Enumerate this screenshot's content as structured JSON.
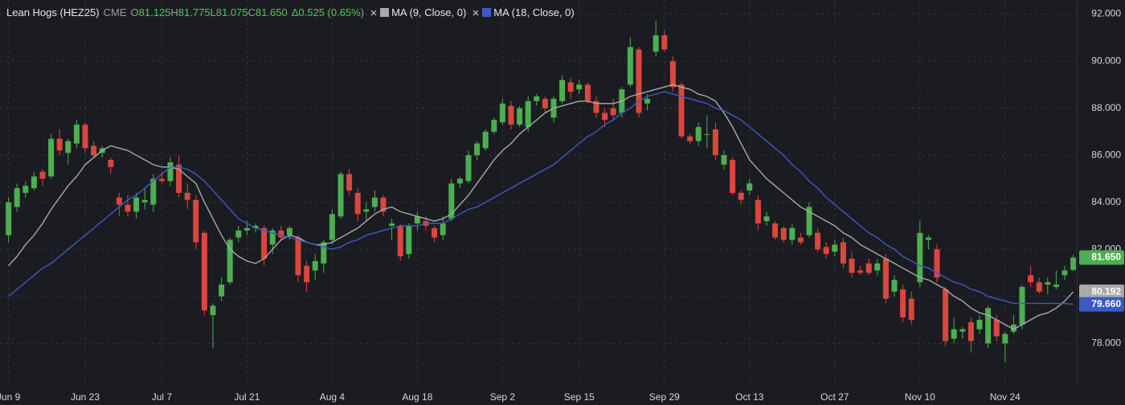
{
  "chart_data": {
    "type": "candlestick",
    "title": "Lean Hogs (HEZ25)",
    "exchange": "CME",
    "quote": [
      {
        "key": "O",
        "text": "81.125"
      },
      {
        "key": "H",
        "text": "81.775"
      },
      {
        "key": "L",
        "text": "81.075"
      },
      {
        "key": "C",
        "text": "81.650"
      }
    ],
    "change": "Δ0.525 (0.65%)",
    "categories": [
      "Jun 9",
      null,
      null,
      null,
      null,
      null,
      null,
      null,
      null,
      "Jun 23",
      null,
      null,
      null,
      null,
      null,
      null,
      null,
      null,
      "Jul 7",
      null,
      null,
      null,
      null,
      null,
      null,
      null,
      null,
      null,
      "Jul 21",
      null,
      null,
      null,
      null,
      null,
      null,
      null,
      null,
      null,
      "Aug 4",
      null,
      null,
      null,
      null,
      null,
      null,
      null,
      null,
      null,
      "Aug 18",
      null,
      null,
      null,
      null,
      null,
      null,
      null,
      null,
      null,
      "Sep 2",
      null,
      null,
      null,
      null,
      null,
      null,
      null,
      null,
      "Sep 15",
      null,
      null,
      null,
      null,
      null,
      null,
      null,
      null,
      null,
      "Sep 29",
      null,
      null,
      null,
      null,
      null,
      null,
      null,
      null,
      null,
      "Oct 13",
      null,
      null,
      null,
      null,
      null,
      null,
      null,
      null,
      null,
      "Oct 27",
      null,
      null,
      null,
      null,
      null,
      null,
      null,
      null,
      null,
      "Nov 10",
      null,
      null,
      null,
      null,
      null,
      null,
      null,
      null,
      null,
      "Nov 24",
      null,
      null,
      null,
      null,
      null,
      null,
      null,
      null
    ],
    "open": [
      82.6,
      83.8,
      84.4,
      84.6,
      85.3,
      85.1,
      86.7,
      86.1,
      86.5,
      87.3,
      86.4,
      86.1,
      85.8,
      84.2,
      83.9,
      83.6,
      84.0,
      83.9,
      85.0,
      84.9,
      85.6,
      84.4,
      84.1,
      82.7,
      79.2,
      80.0,
      80.6,
      82.5,
      82.8,
      82.9,
      82.9,
      82.2,
      82.8,
      82.6,
      82.5,
      81.3,
      81.1,
      81.4,
      82.4,
      83.4,
      85.2,
      84.4,
      83.6,
      83.8,
      84.2,
      83.0,
      83.0,
      81.8,
      83.1,
      83.2,
      82.9,
      82.6,
      83.3,
      84.8,
      84.9,
      86.0,
      86.3,
      87.0,
      87.4,
      88.1,
      87.3,
      87.2,
      88.3,
      88.4,
      87.6,
      88.3,
      89.1,
      88.8,
      89.0,
      88.3,
      87.8,
      88.0,
      87.8,
      89.0,
      90.5,
      88.2,
      90.4,
      91.1,
      90.0,
      89.0,
      86.8,
      86.6,
      86.9,
      87.1,
      85.6,
      85.8,
      84.4,
      84.5,
      84.1,
      83.2,
      83.1,
      82.9,
      82.4,
      82.5,
      82.6,
      82.7,
      82.1,
      81.9,
      82.3,
      81.6,
      81.1,
      81.4,
      81.1,
      81.6,
      80.2,
      80.3,
      79.9,
      80.6,
      82.4,
      82.0,
      80.3,
      78.2,
      78.5,
      78.9,
      78.6,
      78.0,
      79.0,
      78.0,
      78.5,
      78.8,
      80.9,
      80.6,
      80.5,
      80.4,
      80.9,
      81.125
    ],
    "high": [
      84.2,
      84.8,
      84.9,
      85.3,
      85.4,
      86.9,
      87.1,
      86.7,
      87.5,
      87.4,
      86.6,
      86.4,
      85.9,
      84.4,
      84.3,
      84.4,
      84.6,
      85.2,
      85.3,
      85.9,
      86.0,
      84.8,
      84.3,
      82.8,
      79.7,
      80.8,
      82.5,
      83.0,
      83.2,
      83.1,
      83.0,
      82.9,
      83.0,
      83.0,
      82.6,
      81.5,
      81.8,
      82.4,
      83.7,
      85.3,
      85.4,
      84.6,
      84.0,
      84.5,
      84.3,
      83.3,
      83.1,
      83.1,
      83.6,
      83.4,
      83.0,
      83.4,
      85.0,
      85.1,
      86.2,
      86.6,
      87.1,
      87.6,
      88.4,
      88.3,
      88.1,
      88.5,
      88.6,
      88.5,
      88.5,
      89.4,
      89.3,
      89.2,
      89.1,
      88.5,
      88.0,
      88.4,
      88.9,
      91.0,
      90.6,
      88.6,
      91.7,
      91.3,
      90.2,
      89.1,
      86.9,
      87.4,
      87.7,
      87.4,
      86.2,
      85.9,
      84.5,
      85.0,
      84.3,
      83.6,
      83.2,
      83.0,
      83.1,
      82.7,
      84.0,
      82.9,
      82.3,
      82.4,
      82.5,
      81.9,
      81.3,
      81.6,
      81.6,
      81.8,
      80.9,
      80.5,
      80.2,
      83.2,
      82.6,
      82.2,
      80.4,
      79.1,
      78.7,
      79.1,
      79.2,
      79.6,
      79.2,
      78.5,
      79.2,
      80.5,
      81.3,
      80.8,
      80.8,
      81.1,
      81.3,
      81.775
    ],
    "low": [
      82.3,
      83.6,
      84.2,
      84.5,
      84.7,
      85.0,
      86.0,
      85.6,
      86.3,
      86.1,
      85.9,
      85.9,
      85.2,
      83.4,
      83.4,
      83.3,
      83.7,
      83.6,
      84.8,
      84.7,
      84.2,
      83.7,
      82.0,
      79.2,
      77.8,
      79.8,
      80.5,
      82.3,
      82.6,
      82.7,
      81.3,
      81.8,
      82.4,
      82.4,
      80.6,
      80.2,
      80.7,
      81.0,
      82.2,
      83.3,
      84.3,
      83.2,
      83.2,
      83.6,
      83.4,
      82.4,
      81.5,
      81.6,
      82.8,
      82.8,
      82.3,
      82.4,
      83.2,
      84.6,
      84.8,
      85.8,
      86.2,
      86.9,
      87.3,
      87.1,
      87.2,
      87.0,
      88.1,
      87.8,
      87.4,
      88.2,
      88.4,
      88.6,
      88.2,
      87.6,
      87.2,
      87.5,
      87.6,
      88.9,
      87.6,
      87.9,
      90.2,
      90.4,
      88.7,
      86.7,
      86.5,
      86.4,
      86.3,
      85.8,
      85.4,
      84.3,
      83.9,
      84.3,
      82.8,
      83.0,
      82.4,
      82.3,
      82.2,
      82.2,
      82.5,
      81.9,
      81.6,
      81.7,
      81.2,
      80.8,
      80.9,
      80.9,
      80.9,
      79.7,
      80.0,
      78.9,
      78.8,
      80.4,
      82.0,
      80.6,
      77.9,
      78.0,
      78.2,
      77.6,
      78.4,
      77.8,
      78.1,
      77.2,
      78.4,
      78.6,
      80.4,
      80.1,
      80.1,
      80.3,
      80.7,
      81.075
    ],
    "close": [
      84.0,
      84.6,
      84.7,
      85.1,
      85.0,
      86.7,
      86.2,
      86.6,
      87.3,
      86.3,
      86.0,
      86.3,
      85.5,
      83.9,
      83.6,
      84.2,
      84.1,
      85.0,
      84.9,
      85.7,
      84.4,
      84.1,
      82.3,
      79.4,
      79.6,
      80.5,
      82.4,
      82.8,
      82.9,
      83.0,
      81.6,
      82.8,
      82.5,
      82.9,
      80.9,
      80.6,
      81.5,
      82.3,
      83.5,
      85.2,
      84.5,
      83.5,
      83.7,
      84.2,
      83.6,
      83.1,
      81.7,
      83.0,
      83.4,
      83.0,
      82.5,
      83.1,
      84.8,
      85.0,
      86.0,
      86.5,
      87.0,
      87.5,
      88.2,
      87.3,
      88.0,
      88.3,
      88.5,
      88.0,
      88.4,
      89.2,
      88.7,
      89.0,
      88.3,
      87.8,
      87.5,
      87.7,
      88.8,
      90.6,
      87.8,
      88.4,
      91.1,
      90.5,
      88.9,
      86.8,
      86.6,
      87.2,
      86.9,
      86.0,
      86.0,
      84.4,
      84.1,
      84.8,
      83.1,
      83.4,
      82.5,
      82.4,
      82.9,
      82.3,
      83.8,
      82.0,
      81.8,
      82.2,
      81.4,
      81.0,
      81.0,
      81.0,
      81.4,
      79.9,
      80.7,
      79.1,
      79.0,
      82.7,
      82.5,
      80.8,
      78.1,
      78.6,
      78.6,
      78.1,
      79.0,
      79.5,
      78.3,
      78.4,
      78.8,
      80.4,
      80.6,
      80.2,
      80.6,
      80.5,
      81.1,
      81.65
    ],
    "up_color": "#4caf50",
    "down_color": "#d9473f",
    "series": [
      {
        "name": "MA (9, Close, 0)",
        "color": "#a9a9a9",
        "values": [
          81.3,
          81.7,
          82.2,
          82.6,
          83.1,
          83.7,
          84.2,
          84.7,
          85.1,
          85.6,
          85.9,
          86.2,
          86.4,
          86.3,
          86.2,
          86.0,
          85.8,
          85.6,
          85.5,
          85.5,
          85.4,
          85.1,
          84.8,
          84.0,
          83.3,
          82.6,
          82.0,
          81.7,
          81.5,
          81.4,
          81.6,
          82.0,
          82.4,
          82.6,
          82.5,
          82.3,
          82.2,
          82.2,
          82.3,
          82.5,
          82.7,
          82.9,
          83.2,
          83.5,
          83.7,
          83.8,
          83.6,
          83.5,
          83.4,
          83.3,
          83.2,
          83.3,
          83.5,
          83.9,
          84.3,
          84.8,
          85.3,
          85.8,
          86.2,
          86.5,
          86.9,
          87.2,
          87.5,
          87.8,
          88.0,
          88.1,
          88.2,
          88.3,
          88.3,
          88.2,
          88.2,
          88.2,
          88.3,
          88.5,
          88.6,
          88.7,
          88.8,
          88.9,
          89.0,
          88.9,
          88.8,
          88.6,
          88.5,
          88.3,
          87.8,
          87.2,
          86.5,
          85.8,
          85.4,
          85.0,
          84.7,
          84.4,
          84.1,
          83.8,
          83.6,
          83.4,
          83.2,
          83.0,
          82.7,
          82.5,
          82.2,
          82.0,
          81.8,
          81.6,
          81.4,
          81.2,
          81.0,
          80.8,
          80.7,
          80.5,
          80.3,
          80.0,
          79.8,
          79.5,
          79.3,
          79.2,
          79.0,
          78.8,
          78.6,
          78.8,
          79.0,
          79.2,
          79.3,
          79.5,
          79.8,
          80.192
        ]
      },
      {
        "name": "MA (18, Close, 0)",
        "color": "#3b5bc4",
        "values": [
          80.0,
          80.3,
          80.6,
          80.9,
          81.2,
          81.4,
          81.7,
          82.0,
          82.3,
          82.6,
          82.9,
          83.2,
          83.5,
          83.8,
          84.1,
          84.3,
          84.6,
          84.9,
          85.2,
          85.5,
          85.5,
          85.4,
          85.2,
          84.9,
          84.5,
          84.1,
          83.7,
          83.3,
          83.1,
          82.9,
          82.8,
          82.7,
          82.6,
          82.5,
          82.4,
          82.3,
          82.2,
          82.1,
          82.0,
          82.1,
          82.3,
          82.4,
          82.6,
          82.7,
          82.8,
          82.9,
          83.0,
          83.0,
          83.0,
          83.1,
          83.1,
          83.1,
          83.3,
          83.5,
          83.7,
          83.8,
          84.0,
          84.2,
          84.4,
          84.6,
          84.8,
          85.0,
          85.2,
          85.4,
          85.6,
          85.9,
          86.2,
          86.5,
          86.8,
          87.0,
          87.3,
          87.5,
          87.8,
          88.0,
          88.3,
          88.5,
          88.6,
          88.7,
          88.6,
          88.5,
          88.4,
          88.3,
          88.2,
          88.0,
          87.9,
          87.7,
          87.5,
          87.2,
          86.9,
          86.6,
          86.3,
          86.0,
          85.6,
          85.3,
          84.9,
          84.6,
          84.2,
          83.9,
          83.6,
          83.3,
          83.0,
          82.7,
          82.5,
          82.2,
          82.0,
          81.7,
          81.5,
          81.3,
          81.2,
          81.0,
          80.8,
          80.6,
          80.5,
          80.3,
          80.2,
          80.0,
          79.9,
          79.8,
          79.7,
          79.7,
          79.7,
          79.7,
          79.7,
          79.7,
          79.7,
          79.66
        ]
      }
    ],
    "price_markers": [
      {
        "value": 81.65,
        "label": "81.650",
        "color": "#4caf50"
      },
      {
        "value": 80.192,
        "label": "80.192",
        "color": "#a9a9a9"
      },
      {
        "value": 79.66,
        "label": "79.660",
        "color": "#3b5bc4"
      }
    ],
    "ylim": [
      76.2,
      92.6
    ],
    "yticks": [
      {
        "value": 78,
        "label": "78.000"
      },
      {
        "value": 80,
        "label": "80.000"
      },
      {
        "value": 82,
        "label": "82.000"
      },
      {
        "value": 84,
        "label": "84.000"
      },
      {
        "value": 86,
        "label": "86.000"
      },
      {
        "value": 88,
        "label": "88.000"
      },
      {
        "value": 90,
        "label": "90.000"
      },
      {
        "value": 92,
        "label": "92.000"
      }
    ],
    "grid": true
  }
}
